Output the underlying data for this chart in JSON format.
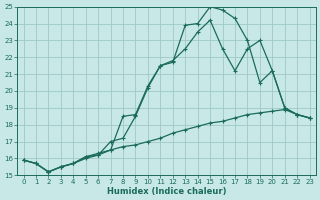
{
  "xlabel": "Humidex (Indice chaleur)",
  "xlim": [
    -0.5,
    23.5
  ],
  "ylim": [
    15,
    25
  ],
  "yticks": [
    15,
    16,
    17,
    18,
    19,
    20,
    21,
    22,
    23,
    24,
    25
  ],
  "xticks": [
    0,
    1,
    2,
    3,
    4,
    5,
    6,
    7,
    8,
    9,
    10,
    11,
    12,
    13,
    14,
    15,
    16,
    17,
    18,
    19,
    20,
    21,
    22,
    23
  ],
  "bg_color": "#c8e8e8",
  "grid_color": "#a0c8c8",
  "line_color": "#1a6b5a",
  "line2_x": [
    0,
    1,
    2,
    3,
    4,
    5,
    6,
    7,
    8,
    9,
    10,
    11,
    12,
    13,
    14,
    15,
    16,
    17,
    18,
    19,
    20,
    21,
    22,
    23
  ],
  "line2_y": [
    15.9,
    15.7,
    15.2,
    15.5,
    15.7,
    16.1,
    16.2,
    17.0,
    17.2,
    18.5,
    20.2,
    21.5,
    21.7,
    23.9,
    24.0,
    25.0,
    24.8,
    24.3,
    23.0,
    20.5,
    21.2,
    19.0,
    18.6,
    18.4
  ],
  "line1_x": [
    0,
    1,
    2,
    3,
    4,
    5,
    6,
    7,
    8,
    9,
    10,
    11,
    12,
    13,
    14,
    15,
    16,
    17,
    18,
    19,
    20,
    21,
    22,
    23
  ],
  "line1_y": [
    15.9,
    15.7,
    15.2,
    15.5,
    15.7,
    16.1,
    16.3,
    16.5,
    18.5,
    18.6,
    20.3,
    21.5,
    21.8,
    22.5,
    23.5,
    24.2,
    22.5,
    21.2,
    22.5,
    23.0,
    21.2,
    19.0,
    18.6,
    18.4
  ],
  "line3_x": [
    0,
    1,
    2,
    3,
    4,
    5,
    6,
    7,
    8,
    9,
    10,
    11,
    12,
    13,
    14,
    15,
    16,
    17,
    18,
    19,
    20,
    21,
    22,
    23
  ],
  "line3_y": [
    15.9,
    15.7,
    15.2,
    15.5,
    15.7,
    16.0,
    16.2,
    16.5,
    16.7,
    16.8,
    17.0,
    17.2,
    17.5,
    17.7,
    17.9,
    18.1,
    18.2,
    18.4,
    18.6,
    18.7,
    18.8,
    18.9,
    18.6,
    18.4
  ]
}
